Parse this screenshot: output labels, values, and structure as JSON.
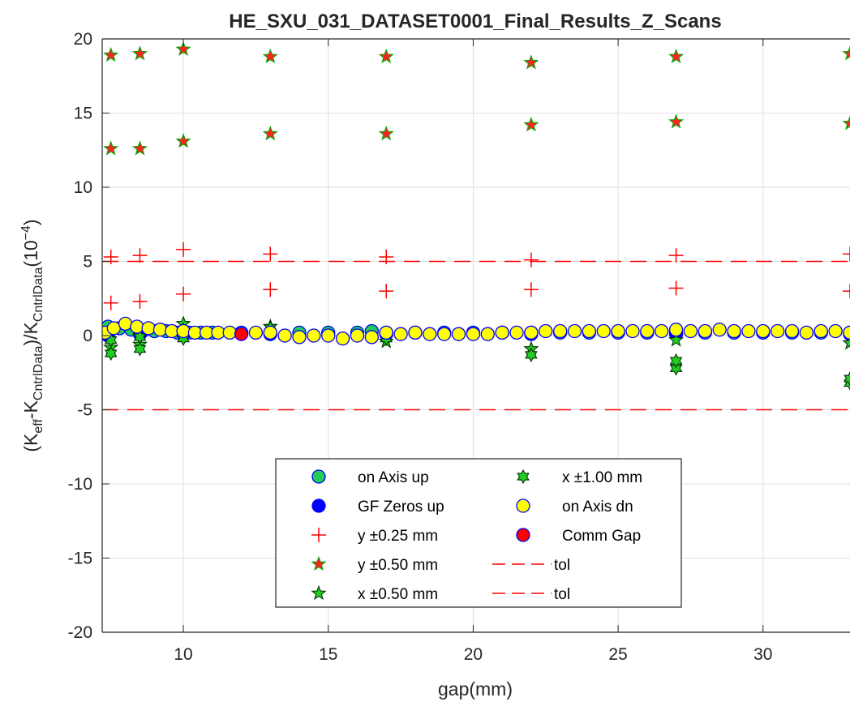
{
  "chart_data": {
    "type": "scatter",
    "title": "HE_SXU_031_DATASET0001_Final_Results_Z_Scans",
    "xlabel": "gap(mm)",
    "ylabel": {
      "open": "(K",
      "sub1": "eff",
      "mid1": "-K",
      "sub2": "CntrlData",
      "mid2": ")/K",
      "sub3": "CntrlData",
      "mid3": "(10",
      "sup": "−4",
      "close": ")"
    },
    "xlim": [
      7.2,
      33.0
    ],
    "ylim": [
      -20,
      20
    ],
    "xticks": [
      10,
      15,
      20,
      25,
      30
    ],
    "yticks": [
      -20,
      -15,
      -10,
      -5,
      0,
      5,
      10,
      15,
      20
    ],
    "grid": true,
    "legend_position": "lower-center",
    "series": [
      {
        "name": "on Axis up",
        "marker": "circle",
        "fill": "#22cc55",
        "edge": "#0000ff",
        "x": [
          7.4,
          7.8,
          8.2,
          8.6,
          9.0,
          9.4,
          9.8,
          10.2,
          10.6,
          11,
          12,
          13,
          14,
          15,
          16,
          16.5,
          17,
          18,
          19,
          20,
          21,
          22,
          23,
          24,
          25,
          26,
          27,
          28,
          29,
          30,
          31,
          32,
          33
        ],
        "y": [
          0.6,
          0.5,
          0.4,
          0.3,
          0.3,
          0.3,
          0.2,
          0.2,
          0.2,
          0.2,
          0.2,
          0.2,
          0.2,
          0.2,
          0.2,
          0.3,
          0.2,
          0.2,
          0.2,
          0.2,
          0.2,
          0.2,
          0.2,
          0.2,
          0.2,
          0.2,
          0.2,
          0.2,
          0.2,
          0.2,
          0.2,
          0.2,
          0.2
        ]
      },
      {
        "name": "GF Zeros up",
        "marker": "circle",
        "fill": "#0000ff",
        "edge": "#0000ff",
        "x": [
          7.4,
          8.5,
          10,
          13,
          17,
          22,
          27,
          33
        ],
        "y": [
          0.0,
          0.1,
          0.1,
          0.1,
          0.1,
          0.1,
          0.1,
          0.1
        ]
      },
      {
        "name": "y ±0.25 mm",
        "marker": "plus",
        "fill": "none",
        "edge": "#ff0000",
        "x": [
          7.5,
          8.5,
          10,
          13,
          17,
          22,
          27,
          33,
          7.5,
          8.5,
          10,
          13,
          17,
          22,
          27,
          33
        ],
        "y": [
          5.3,
          5.4,
          5.8,
          5.5,
          5.3,
          5.1,
          5.4,
          5.5,
          2.2,
          2.3,
          2.8,
          3.1,
          3.0,
          3.1,
          3.2,
          3.0
        ]
      },
      {
        "name": "y ±0.50 mm",
        "marker": "star",
        "fill": "#ff2222",
        "edge": "#00aa00",
        "x": [
          7.5,
          8.5,
          10,
          13,
          17,
          22,
          27,
          33,
          7.5,
          8.5,
          10,
          13,
          17,
          22,
          27,
          33
        ],
        "y": [
          18.9,
          19.0,
          19.3,
          18.8,
          18.8,
          18.4,
          18.8,
          19.0,
          12.6,
          12.6,
          13.1,
          13.6,
          13.6,
          14.2,
          14.4,
          14.3
        ]
      },
      {
        "name": "x ±0.50 mm",
        "marker": "star",
        "fill": "#22cc22",
        "edge": "#003300",
        "x": [
          7.5,
          8.5,
          10,
          13,
          17,
          22,
          27,
          33
        ],
        "y": [
          -0.8,
          -0.6,
          0.8,
          0.6,
          -0.4,
          -0.9,
          -0.3,
          -0.5
        ]
      },
      {
        "name": "x ±1.00 mm",
        "marker": "hexagram",
        "fill": "#22cc22",
        "edge": "#003300",
        "x": [
          7.5,
          8.5,
          10,
          13,
          17,
          22,
          27,
          33,
          7.5,
          8.5,
          10,
          13,
          27,
          33
        ],
        "y": [
          -1.2,
          -0.9,
          -0.2,
          0.2,
          -0.2,
          -1.3,
          -2.2,
          -3.2,
          -0.3,
          -0.1,
          0.4,
          0.5,
          -1.7,
          -2.9
        ]
      },
      {
        "name": "on Axis dn",
        "marker": "circle",
        "fill": "#ffff00",
        "edge": "#0000ff",
        "x": [
          7.3,
          7.6,
          8.0,
          8.4,
          8.8,
          9.2,
          9.6,
          10.0,
          10.4,
          10.8,
          11.2,
          11.6,
          12.5,
          13.0,
          13.5,
          14.0,
          14.5,
          15.0,
          15.5,
          16.0,
          16.5,
          17.0,
          17.5,
          18.0,
          18.5,
          19.0,
          19.5,
          20.0,
          20.5,
          21.0,
          21.5,
          22.0,
          22.5,
          23.0,
          23.5,
          24.0,
          24.5,
          25.0,
          25.5,
          26.0,
          26.5,
          27.0,
          27.5,
          28.0,
          28.5,
          29.0,
          29.5,
          30.0,
          30.5,
          31.0,
          31.5,
          32.0,
          32.5,
          33.0
        ],
        "y": [
          0.2,
          0.5,
          0.8,
          0.6,
          0.5,
          0.4,
          0.3,
          0.3,
          0.2,
          0.2,
          0.2,
          0.2,
          0.2,
          0.2,
          0.0,
          -0.1,
          0.0,
          0.0,
          -0.2,
          0.0,
          -0.1,
          0.2,
          0.1,
          0.2,
          0.1,
          0.1,
          0.1,
          0.1,
          0.1,
          0.2,
          0.2,
          0.2,
          0.3,
          0.3,
          0.3,
          0.3,
          0.3,
          0.3,
          0.3,
          0.3,
          0.3,
          0.4,
          0.3,
          0.3,
          0.4,
          0.3,
          0.3,
          0.3,
          0.3,
          0.3,
          0.2,
          0.3,
          0.3,
          0.2
        ]
      },
      {
        "name": "Comm Gap",
        "marker": "circle",
        "fill": "#ff0000",
        "edge": "#0000ff",
        "x": [
          12
        ],
        "y": [
          0.1
        ]
      },
      {
        "name": "tol",
        "marker": "dashed-line",
        "color": "#ff0000",
        "y": 5
      },
      {
        "name": "tol",
        "marker": "dashed-line",
        "color": "#ff0000",
        "y": -5
      }
    ]
  }
}
